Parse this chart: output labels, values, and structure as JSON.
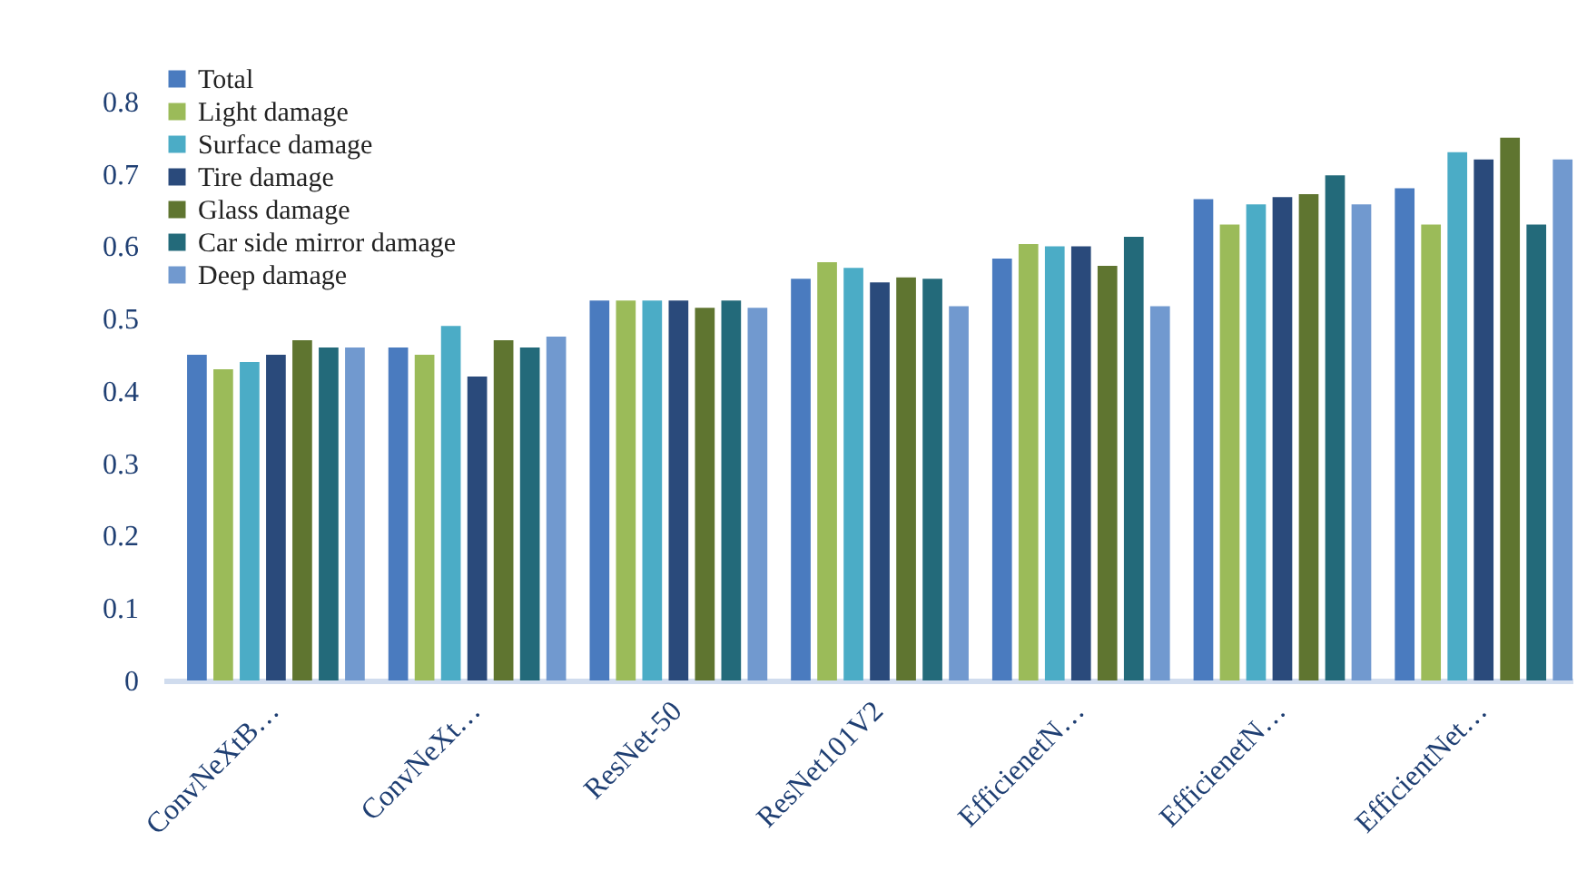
{
  "chart_data": {
    "type": "bar",
    "categories": [
      "ConvNeXtB…",
      "ConvNeXt…",
      "ResNet-50",
      "ResNet101V2",
      "EfficienetN…",
      "EfficienetN…",
      "EfficientNet…"
    ],
    "series": [
      {
        "name": "Total",
        "color": "#4a7bbf",
        "values": [
          0.45,
          0.46,
          0.525,
          0.555,
          0.583,
          0.665,
          0.68
        ]
      },
      {
        "name": "Light damage",
        "color": "#9bbb59",
        "values": [
          0.43,
          0.45,
          0.525,
          0.578,
          0.603,
          0.63,
          0.63
        ]
      },
      {
        "name": "Surface damage",
        "color": "#4bacc6",
        "values": [
          0.44,
          0.49,
          0.525,
          0.57,
          0.6,
          0.658,
          0.73
        ]
      },
      {
        "name": "Tire damage",
        "color": "#2a4a7b",
        "values": [
          0.45,
          0.42,
          0.525,
          0.55,
          0.6,
          0.668,
          0.72
        ]
      },
      {
        "name": "Glass damage",
        "color": "#5f7530",
        "values": [
          0.47,
          0.47,
          0.515,
          0.557,
          0.573,
          0.672,
          0.75
        ]
      },
      {
        "name": "Car side mirror damage",
        "color": "#236a7a",
        "values": [
          0.46,
          0.46,
          0.525,
          0.555,
          0.613,
          0.698,
          0.63
        ]
      },
      {
        "name": "Deep damage",
        "color": "#7199cf",
        "values": [
          0.46,
          0.475,
          0.515,
          0.517,
          0.517,
          0.658,
          0.72
        ]
      }
    ],
    "ylim": [
      0,
      0.85
    ],
    "yticks": [
      0,
      0.1,
      0.2,
      0.3,
      0.4,
      0.5,
      0.6,
      0.7,
      0.8
    ],
    "grid": false,
    "legend": "top left"
  }
}
